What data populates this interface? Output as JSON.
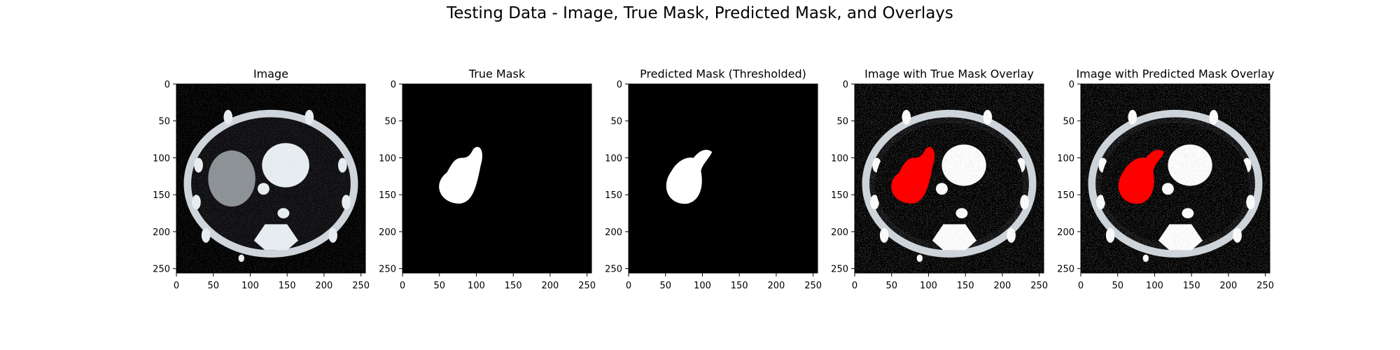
{
  "figure": {
    "suptitle": "Testing Data - Image, True Mask, Predicted Mask, and Overlays"
  },
  "panels": [
    {
      "title": "Image",
      "kind": "ct"
    },
    {
      "title": "True Mask",
      "kind": "true-mask"
    },
    {
      "title": "Predicted Mask (Thresholded)",
      "kind": "pred-mask"
    },
    {
      "title": "Image with True Mask Overlay",
      "kind": "true-overlay"
    },
    {
      "title": "Image with Predicted Mask Overlay",
      "kind": "pred-overlay"
    }
  ],
  "axes": {
    "x_ticks": [
      0,
      50,
      100,
      150,
      200,
      250
    ],
    "y_ticks": [
      0,
      50,
      100,
      150,
      200,
      250
    ],
    "xlim": [
      0,
      256
    ],
    "ylim": [
      256,
      0
    ]
  },
  "colors": {
    "mask": "#ffffff",
    "overlay": "#ff0000",
    "background": "#000000"
  }
}
